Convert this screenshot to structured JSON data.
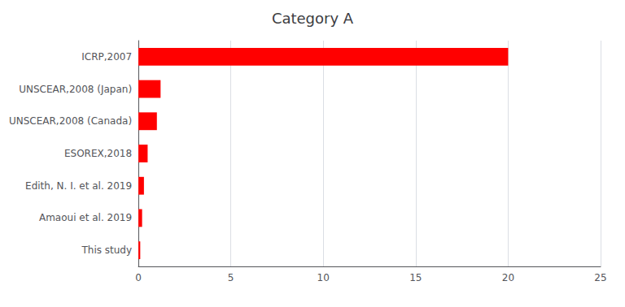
{
  "chart_data": {
    "type": "bar",
    "orientation": "horizontal",
    "title": "Category A",
    "categories": [
      "This study",
      "Amaoui et al. 2019",
      "Edith, N. I. et al. 2019",
      "ESOREX,2018",
      "UNSCEAR,2008 (Canada)",
      "UNSCEAR,2008 (Japan)",
      "ICRP,2007"
    ],
    "values": [
      0.1,
      0.2,
      0.3,
      0.5,
      1.0,
      1.2,
      20.0
    ],
    "color": "#FF0000",
    "xlim": [
      0,
      25
    ],
    "xticks": [
      0,
      5,
      10,
      15,
      20,
      25
    ],
    "grid": true
  }
}
